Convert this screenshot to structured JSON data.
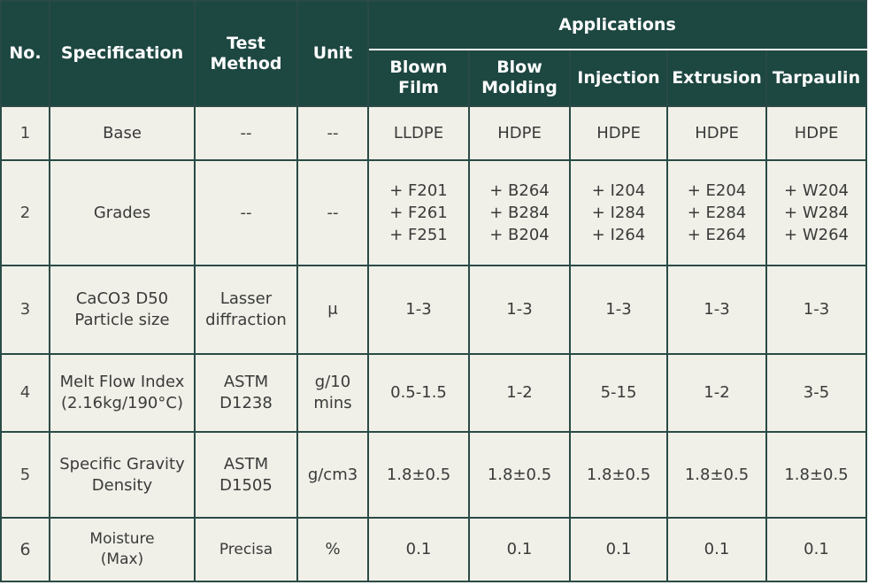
{
  "headers": {
    "no": "No.",
    "specification": "Specification",
    "test_method": [
      "Test",
      "Method"
    ],
    "unit": "Unit",
    "applications": "Applications",
    "apps": [
      [
        "Blown",
        "Film"
      ],
      [
        "Blow",
        "Molding"
      ],
      [
        "Injection"
      ],
      [
        "Extrusion"
      ],
      [
        "Tarpaulin"
      ]
    ]
  },
  "rows": [
    {
      "no": "1",
      "spec": [
        "Base"
      ],
      "method": [
        "--"
      ],
      "unit": [
        "--"
      ],
      "values": [
        [
          "LLDPE"
        ],
        [
          "HDPE"
        ],
        [
          "HDPE"
        ],
        [
          "HDPE"
        ],
        [
          "HDPE"
        ]
      ]
    },
    {
      "no": "2",
      "spec": [
        "Grades"
      ],
      "method": [
        "--"
      ],
      "unit": [
        "--"
      ],
      "values": [
        [
          "+ F201",
          "+ F261",
          "+ F251"
        ],
        [
          "+ B264",
          "+ B284",
          "+ B204"
        ],
        [
          "+ I204",
          "+ I284",
          "+ I264"
        ],
        [
          "+ E204",
          "+ E284",
          "+ E264"
        ],
        [
          "+ W204",
          "+ W284",
          "+ W264"
        ]
      ]
    },
    {
      "no": "3",
      "spec": [
        "CaCO3 D50",
        "Particle size"
      ],
      "method": [
        "Lasser",
        "diffraction"
      ],
      "unit": [
        "μ"
      ],
      "values": [
        [
          "1-3"
        ],
        [
          "1-3"
        ],
        [
          "1-3"
        ],
        [
          "1-3"
        ],
        [
          "1-3"
        ]
      ]
    },
    {
      "no": "4",
      "spec": [
        "Melt Flow Index",
        "(2.16kg/190°C)"
      ],
      "method": [
        "ASTM",
        "D1238"
      ],
      "unit": [
        "g/10",
        "mins"
      ],
      "values": [
        [
          "0.5-1.5"
        ],
        [
          "1-2"
        ],
        [
          "5-15"
        ],
        [
          "1-2"
        ],
        [
          "3-5"
        ]
      ]
    },
    {
      "no": "5",
      "spec": [
        "Specific Gravity",
        "Density"
      ],
      "method": [
        "ASTM",
        "D1505"
      ],
      "unit": [
        "g/cm3"
      ],
      "values": [
        [
          "1.8±0.5"
        ],
        [
          "1.8±0.5"
        ],
        [
          "1.8±0.5"
        ],
        [
          "1.8±0.5"
        ],
        [
          "1.8±0.5"
        ]
      ]
    },
    {
      "no": "6",
      "spec": [
        "Moisture",
        "(Max)"
      ],
      "method": [
        "Precisa"
      ],
      "unit": [
        "%"
      ],
      "values": [
        [
          "0.1"
        ],
        [
          "0.1"
        ],
        [
          "0.1"
        ],
        [
          "0.1"
        ],
        [
          "0.1"
        ]
      ]
    }
  ]
}
